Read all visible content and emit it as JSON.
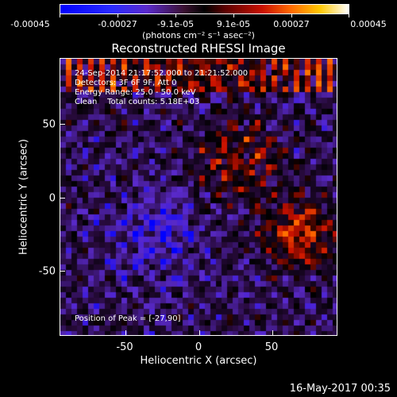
{
  "colorbar": {
    "tick_labels": [
      "-0.00045",
      "-0.00027",
      "-9.1e-05",
      "9.1e-05",
      "0.00027",
      "0.00045"
    ],
    "unit_label": "(photons cm⁻² s⁻¹ asec⁻²)",
    "colors": [
      "#0000ff",
      "#5a2acc",
      "#000000",
      "#c81000",
      "#ff6a00",
      "#ffc800",
      "#ffffff"
    ]
  },
  "title": "Reconstructed RHESSI Image",
  "info_lines": [
    "24-Sep-2014 21:17:52.000 to 21:21:52.000",
    "Detectors: 3F 6F 9F, Att 0",
    "Energy Range: 25.0 - 50.0 keV",
    "Clean    Total counts: 5.18E+03"
  ],
  "peak_text": "Position of Peak = [-27,90]",
  "x_axis": {
    "label": "Heliocentric X (arcsec)",
    "ticks": [
      "-50",
      "0",
      "50"
    ],
    "range": [
      -95,
      95
    ]
  },
  "y_axis": {
    "label": "Heliocentric Y (arcsec)",
    "ticks": [
      "50",
      "0",
      "-50"
    ],
    "range": [
      -95,
      95
    ]
  },
  "datestamp": "16-May-2017 00:35"
}
